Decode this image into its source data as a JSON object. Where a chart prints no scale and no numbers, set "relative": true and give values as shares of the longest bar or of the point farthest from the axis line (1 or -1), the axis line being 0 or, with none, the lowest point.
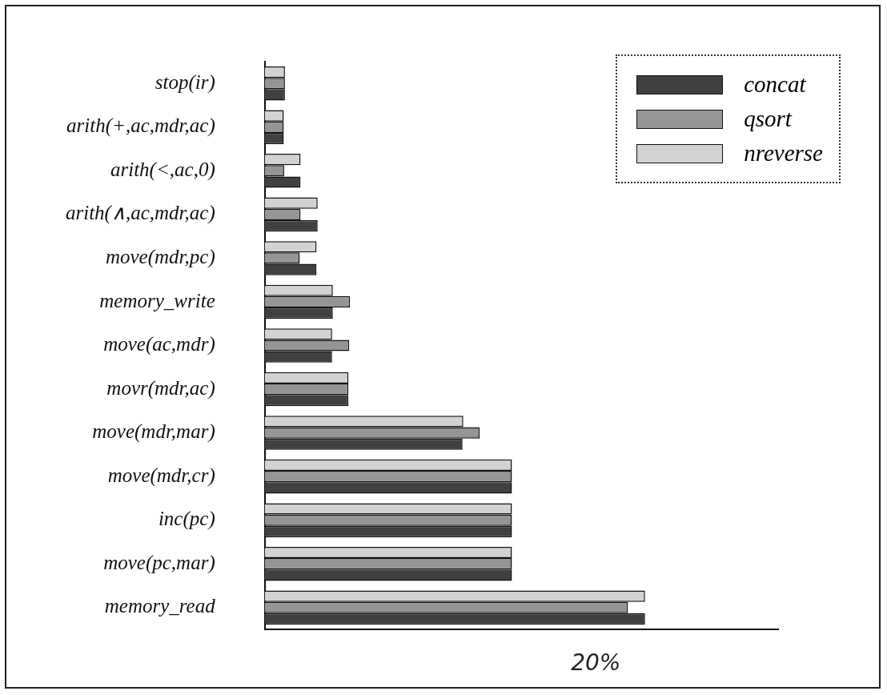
{
  "chart_data": {
    "type": "bar",
    "orientation": "horizontal",
    "relative": true,
    "legend": "top right",
    "categories": [
      "stop(ir)",
      "arith(+,ac,mdr,ac)",
      "arith(<,ac,0)",
      "arith(∧,ac,mdr,ac)",
      "move(mdr,pc)",
      "memory_write",
      "move(ac,mdr)",
      "movr(mdr,ac)",
      "move(mdr,mar)",
      "move(mdr,cr)",
      "inc(pc)",
      "move(pc,mar)",
      "memory_read"
    ],
    "series": [
      {
        "name": "concat",
        "color": "#404040",
        "values": [
          0.053,
          0.05,
          0.094,
          0.139,
          0.136,
          0.179,
          0.177,
          0.22,
          0.52,
          0.65,
          0.65,
          0.65,
          1
        ]
      },
      {
        "name": "qsort",
        "color": "#959595",
        "values": [
          0.053,
          0.05,
          0.051,
          0.094,
          0.092,
          0.224,
          0.222,
          0.22,
          0.565,
          0.65,
          0.65,
          0.65,
          0.955
        ]
      },
      {
        "name": "nreverse",
        "color": "#d2d2d2",
        "values": [
          0.053,
          0.05,
          0.094,
          0.139,
          0.136,
          0.179,
          0.177,
          0.22,
          0.522,
          0.65,
          0.65,
          0.65,
          1
        ]
      }
    ],
    "annotations": [
      "20%"
    ]
  }
}
